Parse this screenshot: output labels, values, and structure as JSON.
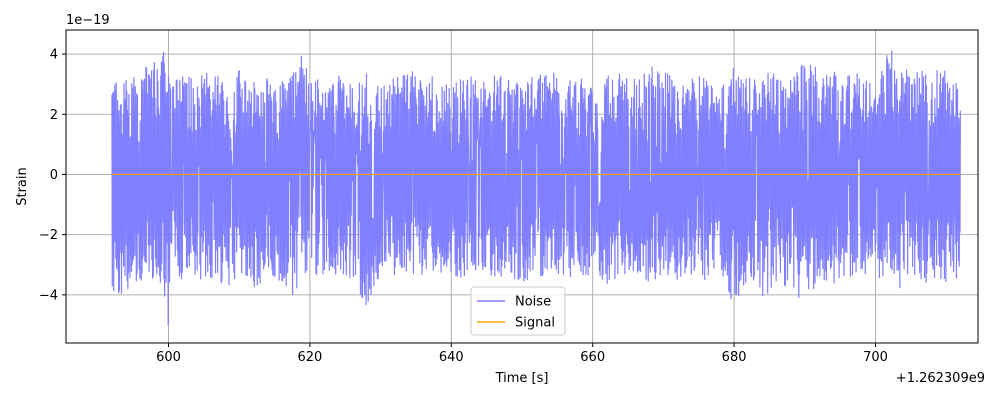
{
  "chart_data": {
    "type": "line",
    "title": "",
    "xlabel": "Time [s]",
    "ylabel": "Strain",
    "x_offset_label": "+1.262309e9",
    "y_scale_label": "1e−19",
    "xlim": [
      585.5,
      714.5
    ],
    "ylim": [
      -5.6,
      4.8
    ],
    "x_ticks": [
      600,
      620,
      640,
      660,
      680,
      700
    ],
    "x_tick_labels": [
      "600",
      "620",
      "640",
      "660",
      "680",
      "700"
    ],
    "y_ticks": [
      -4,
      -2,
      0,
      2,
      4
    ],
    "y_tick_labels": [
      "−4",
      "−2",
      "0",
      "2",
      "4"
    ],
    "grid": true,
    "legend_position": "lower-center",
    "series": [
      {
        "name": "Noise",
        "color": "#7f7fff",
        "x_range": [
          592,
          712
        ],
        "envelope": {
          "x": [
            592,
            595,
            597,
            599,
            600,
            601,
            603,
            605,
            607,
            609,
            610,
            612,
            614,
            616,
            618,
            619,
            620,
            622,
            624,
            626,
            628,
            630,
            632,
            634,
            636,
            638,
            640,
            642,
            644,
            646,
            648,
            650,
            652,
            654,
            656,
            658,
            660,
            662,
            664,
            666,
            668,
            670,
            672,
            674,
            676,
            678,
            680,
            682,
            684,
            686,
            688,
            690,
            692,
            694,
            696,
            698,
            700,
            702,
            703,
            705,
            707,
            709,
            711,
            712
          ],
          "upper": [
            3.1,
            3.3,
            3.7,
            4.3,
            3.6,
            3.2,
            3.5,
            3.4,
            3.3,
            3.0,
            3.6,
            3.1,
            3.3,
            3.1,
            3.5,
            4.1,
            3.2,
            3.1,
            3.3,
            3.0,
            3.4,
            2.9,
            3.3,
            3.5,
            3.2,
            3.3,
            2.9,
            3.5,
            3.0,
            3.3,
            3.4,
            3.2,
            3.3,
            3.5,
            3.1,
            3.3,
            3.0,
            3.3,
            3.4,
            3.2,
            3.6,
            3.6,
            3.1,
            3.4,
            3.3,
            3.3,
            3.6,
            3.2,
            3.5,
            3.3,
            3.2,
            4.2,
            3.4,
            3.5,
            3.3,
            3.5,
            2.8,
            4.3,
            3.9,
            3.3,
            3.5,
            3.5,
            3.4,
            2.5
          ],
          "lower": [
            -4.4,
            -3.6,
            -3.5,
            -3.7,
            -5.1,
            -3.6,
            -3.4,
            -3.5,
            -3.6,
            -3.8,
            -3.3,
            -3.9,
            -3.4,
            -3.6,
            -4.5,
            -3.3,
            -3.5,
            -3.3,
            -3.4,
            -3.5,
            -4.4,
            -3.3,
            -3.4,
            -3.2,
            -3.5,
            -3.3,
            -3.4,
            -3.5,
            -3.3,
            -3.4,
            -3.4,
            -3.6,
            -3.5,
            -3.3,
            -3.8,
            -3.3,
            -3.5,
            -3.7,
            -3.4,
            -3.3,
            -3.6,
            -3.3,
            -3.5,
            -3.4,
            -3.6,
            -3.3,
            -4.4,
            -3.5,
            -4.1,
            -3.7,
            -3.8,
            -4.7,
            -3.4,
            -3.7,
            -3.5,
            -3.3,
            -3.5,
            -3.4,
            -3.9,
            -3.3,
            -3.7,
            -3.5,
            -3.8,
            -3.0
          ]
        }
      },
      {
        "name": "Signal",
        "color": "#ffa500",
        "x": [
          592,
          712
        ],
        "values": [
          0,
          0
        ]
      }
    ]
  }
}
